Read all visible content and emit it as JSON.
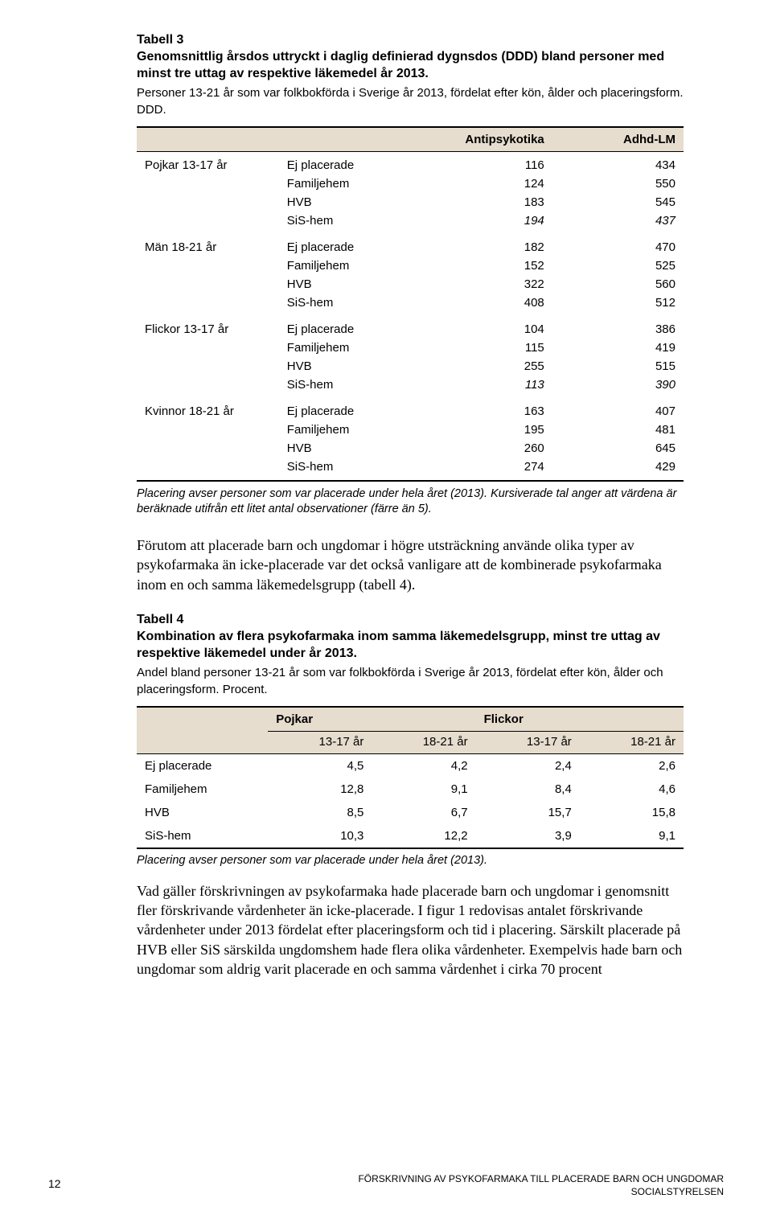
{
  "colors": {
    "header_bg": "#e6ddce",
    "rule": "#000000",
    "page_bg": "#ffffff",
    "text": "#000000"
  },
  "fonts": {
    "sans": "Arial, Helvetica, sans-serif",
    "serif": "Times New Roman, Times, serif",
    "caption_size_pt": 12,
    "body_size_pt": 13,
    "footer_size_pt": 9
  },
  "table3": {
    "caption": "Tabell 3",
    "title": "Genomsnittlig årsdos uttryckt i daglig definierad dygnsdos (DDD) bland personer med minst tre uttag av respektive läkemedel år 2013.",
    "sub": "Personer 13-21 år som var folkbokförda i Sverige år 2013, fördelat efter kön, ålder och placeringsform. DDD.",
    "columns": [
      "Antipsykotika",
      "Adhd-LM"
    ],
    "groups": [
      {
        "label": "Pojkar 13-17 år",
        "rows": [
          {
            "name": "Ej placerade",
            "vals": [
              116,
              434
            ],
            "italic": false
          },
          {
            "name": "Familjehem",
            "vals": [
              124,
              550
            ],
            "italic": false
          },
          {
            "name": "HVB",
            "vals": [
              183,
              545
            ],
            "italic": false
          },
          {
            "name": "SiS-hem",
            "vals": [
              194,
              437
            ],
            "italic": true
          }
        ]
      },
      {
        "label": "Män 18-21 år",
        "rows": [
          {
            "name": "Ej placerade",
            "vals": [
              182,
              470
            ],
            "italic": false
          },
          {
            "name": "Familjehem",
            "vals": [
              152,
              525
            ],
            "italic": false
          },
          {
            "name": "HVB",
            "vals": [
              322,
              560
            ],
            "italic": false
          },
          {
            "name": "SiS-hem",
            "vals": [
              408,
              512
            ],
            "italic": false
          }
        ]
      },
      {
        "label": "Flickor 13-17 år",
        "rows": [
          {
            "name": "Ej placerade",
            "vals": [
              104,
              386
            ],
            "italic": false
          },
          {
            "name": "Familjehem",
            "vals": [
              115,
              419
            ],
            "italic": false
          },
          {
            "name": "HVB",
            "vals": [
              255,
              515
            ],
            "italic": false
          },
          {
            "name": "SiS-hem",
            "vals": [
              113,
              390
            ],
            "italic": true
          }
        ]
      },
      {
        "label": "Kvinnor 18-21 år",
        "rows": [
          {
            "name": "Ej placerade",
            "vals": [
              163,
              407
            ],
            "italic": false
          },
          {
            "name": "Familjehem",
            "vals": [
              195,
              481
            ],
            "italic": false
          },
          {
            "name": "HVB",
            "vals": [
              260,
              645
            ],
            "italic": false
          },
          {
            "name": "SiS-hem",
            "vals": [
              274,
              429
            ],
            "italic": false
          }
        ]
      }
    ],
    "note": "Placering avser personer som var placerade under hela året (2013). Kursiverade tal anger att värdena är beräknade utifrån ett litet antal observationer (färre än 5)."
  },
  "para1": "Förutom att placerade barn och ungdomar i högre utsträckning använde olika typer av psykofarmaka än icke-placerade var det också vanligare att de kombinerade psykofarmaka inom en och samma läkemedelsgrupp (tabell 4).",
  "table4": {
    "caption": "Tabell 4",
    "title": "Kombination av flera psykofarmaka inom samma läkemedelsgrupp, minst tre uttag av respektive läkemedel under år 2013.",
    "sub": "Andel bland personer 13-21 år som var folkbokförda i Sverige år 2013, fördelat efter kön, ålder och placeringsform. Procent.",
    "group_headers": [
      "Pojkar",
      "Flickor"
    ],
    "sub_headers": [
      "13-17 år",
      "18-21 år",
      "13-17 år",
      "18-21 år"
    ],
    "rows": [
      {
        "name": "Ej placerade",
        "vals": [
          "4,5",
          "4,2",
          "2,4",
          "2,6"
        ]
      },
      {
        "name": "Familjehem",
        "vals": [
          "12,8",
          "9,1",
          "8,4",
          "4,6"
        ]
      },
      {
        "name": "HVB",
        "vals": [
          "8,5",
          "6,7",
          "15,7",
          "15,8"
        ]
      },
      {
        "name": "SiS-hem",
        "vals": [
          "10,3",
          "12,2",
          "3,9",
          "9,1"
        ]
      }
    ],
    "note": "Placering avser personer som var placerade under hela året (2013)."
  },
  "para2": "Vad gäller förskrivningen av psykofarmaka hade placerade barn och ungdomar i genomsnitt fler förskrivande vårdenheter än icke-placerade. I figur 1 redovisas antalet förskrivande vårdenheter under 2013 fördelat efter placeringsform och tid i placering. Särskilt placerade på HVB eller SiS särskilda ungdomshem hade flera olika vårdenheter. Exempelvis hade barn och ungdomar som aldrig varit placerade en och samma vårdenhet i cirka 70 procent",
  "footer": {
    "page_number": "12",
    "line1": "FÖRSKRIVNING AV PSYKOFARMAKA TILL PLACERADE BARN OCH UNGDOMAR",
    "line2": "SOCIALSTYRELSEN"
  }
}
